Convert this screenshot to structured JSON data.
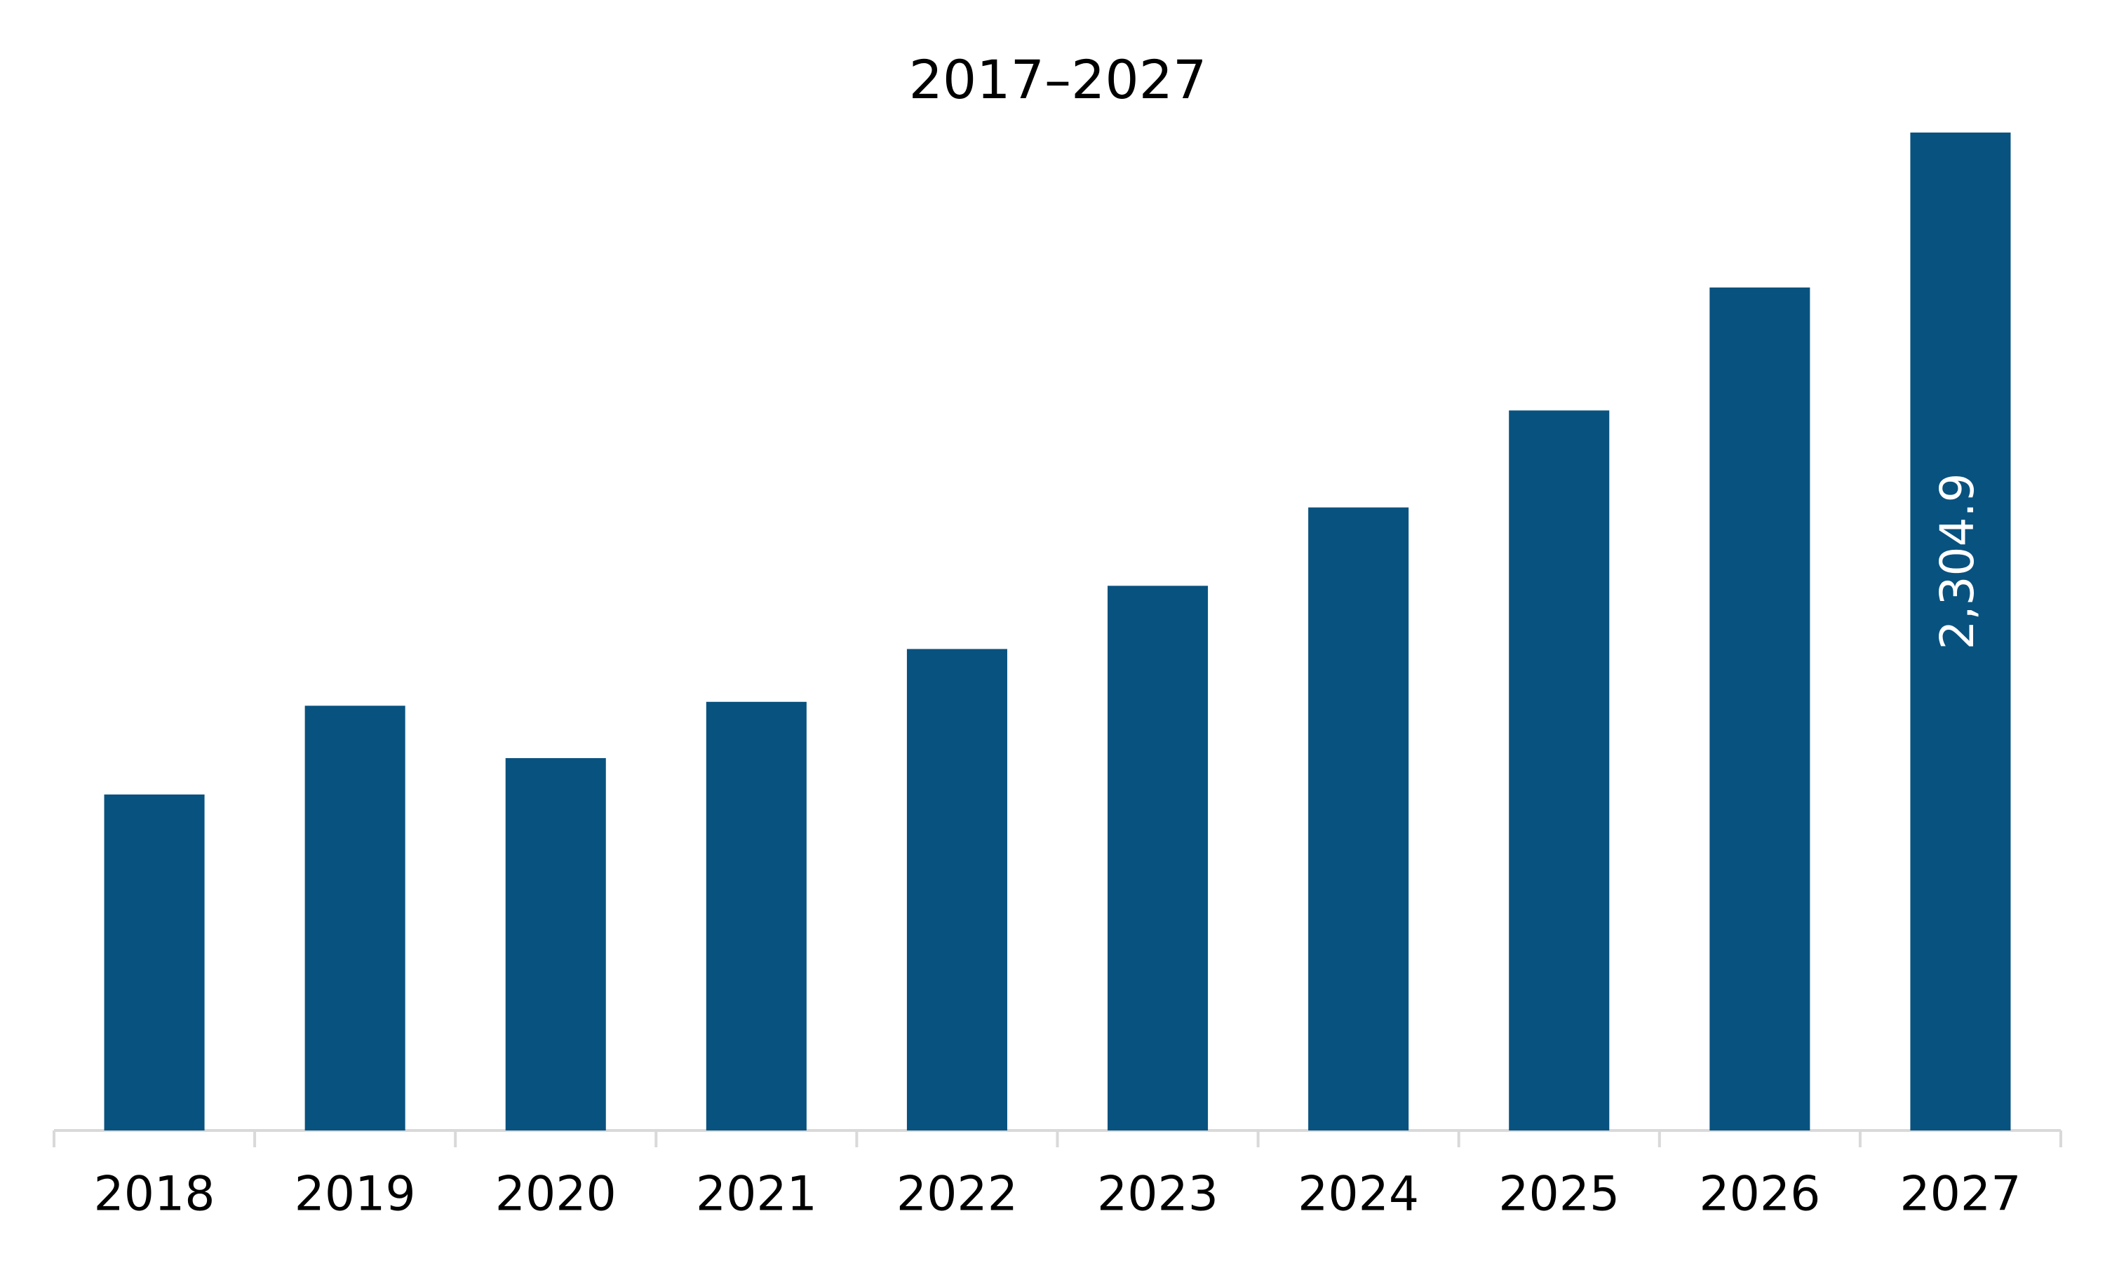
{
  "chart_data": {
    "type": "bar",
    "title": "2017–2027",
    "categories": [
      "2018",
      "2019",
      "2020",
      "2021",
      "2022",
      "2023",
      "2024",
      "2025",
      "2026",
      "2027"
    ],
    "values": [
      776,
      981,
      860,
      990,
      1112,
      1258,
      1439,
      1663,
      1947,
      2304.9
    ],
    "value_labels": [
      null,
      null,
      null,
      null,
      null,
      null,
      null,
      null,
      null,
      "2,304.9"
    ],
    "color": "#08527f"
  }
}
